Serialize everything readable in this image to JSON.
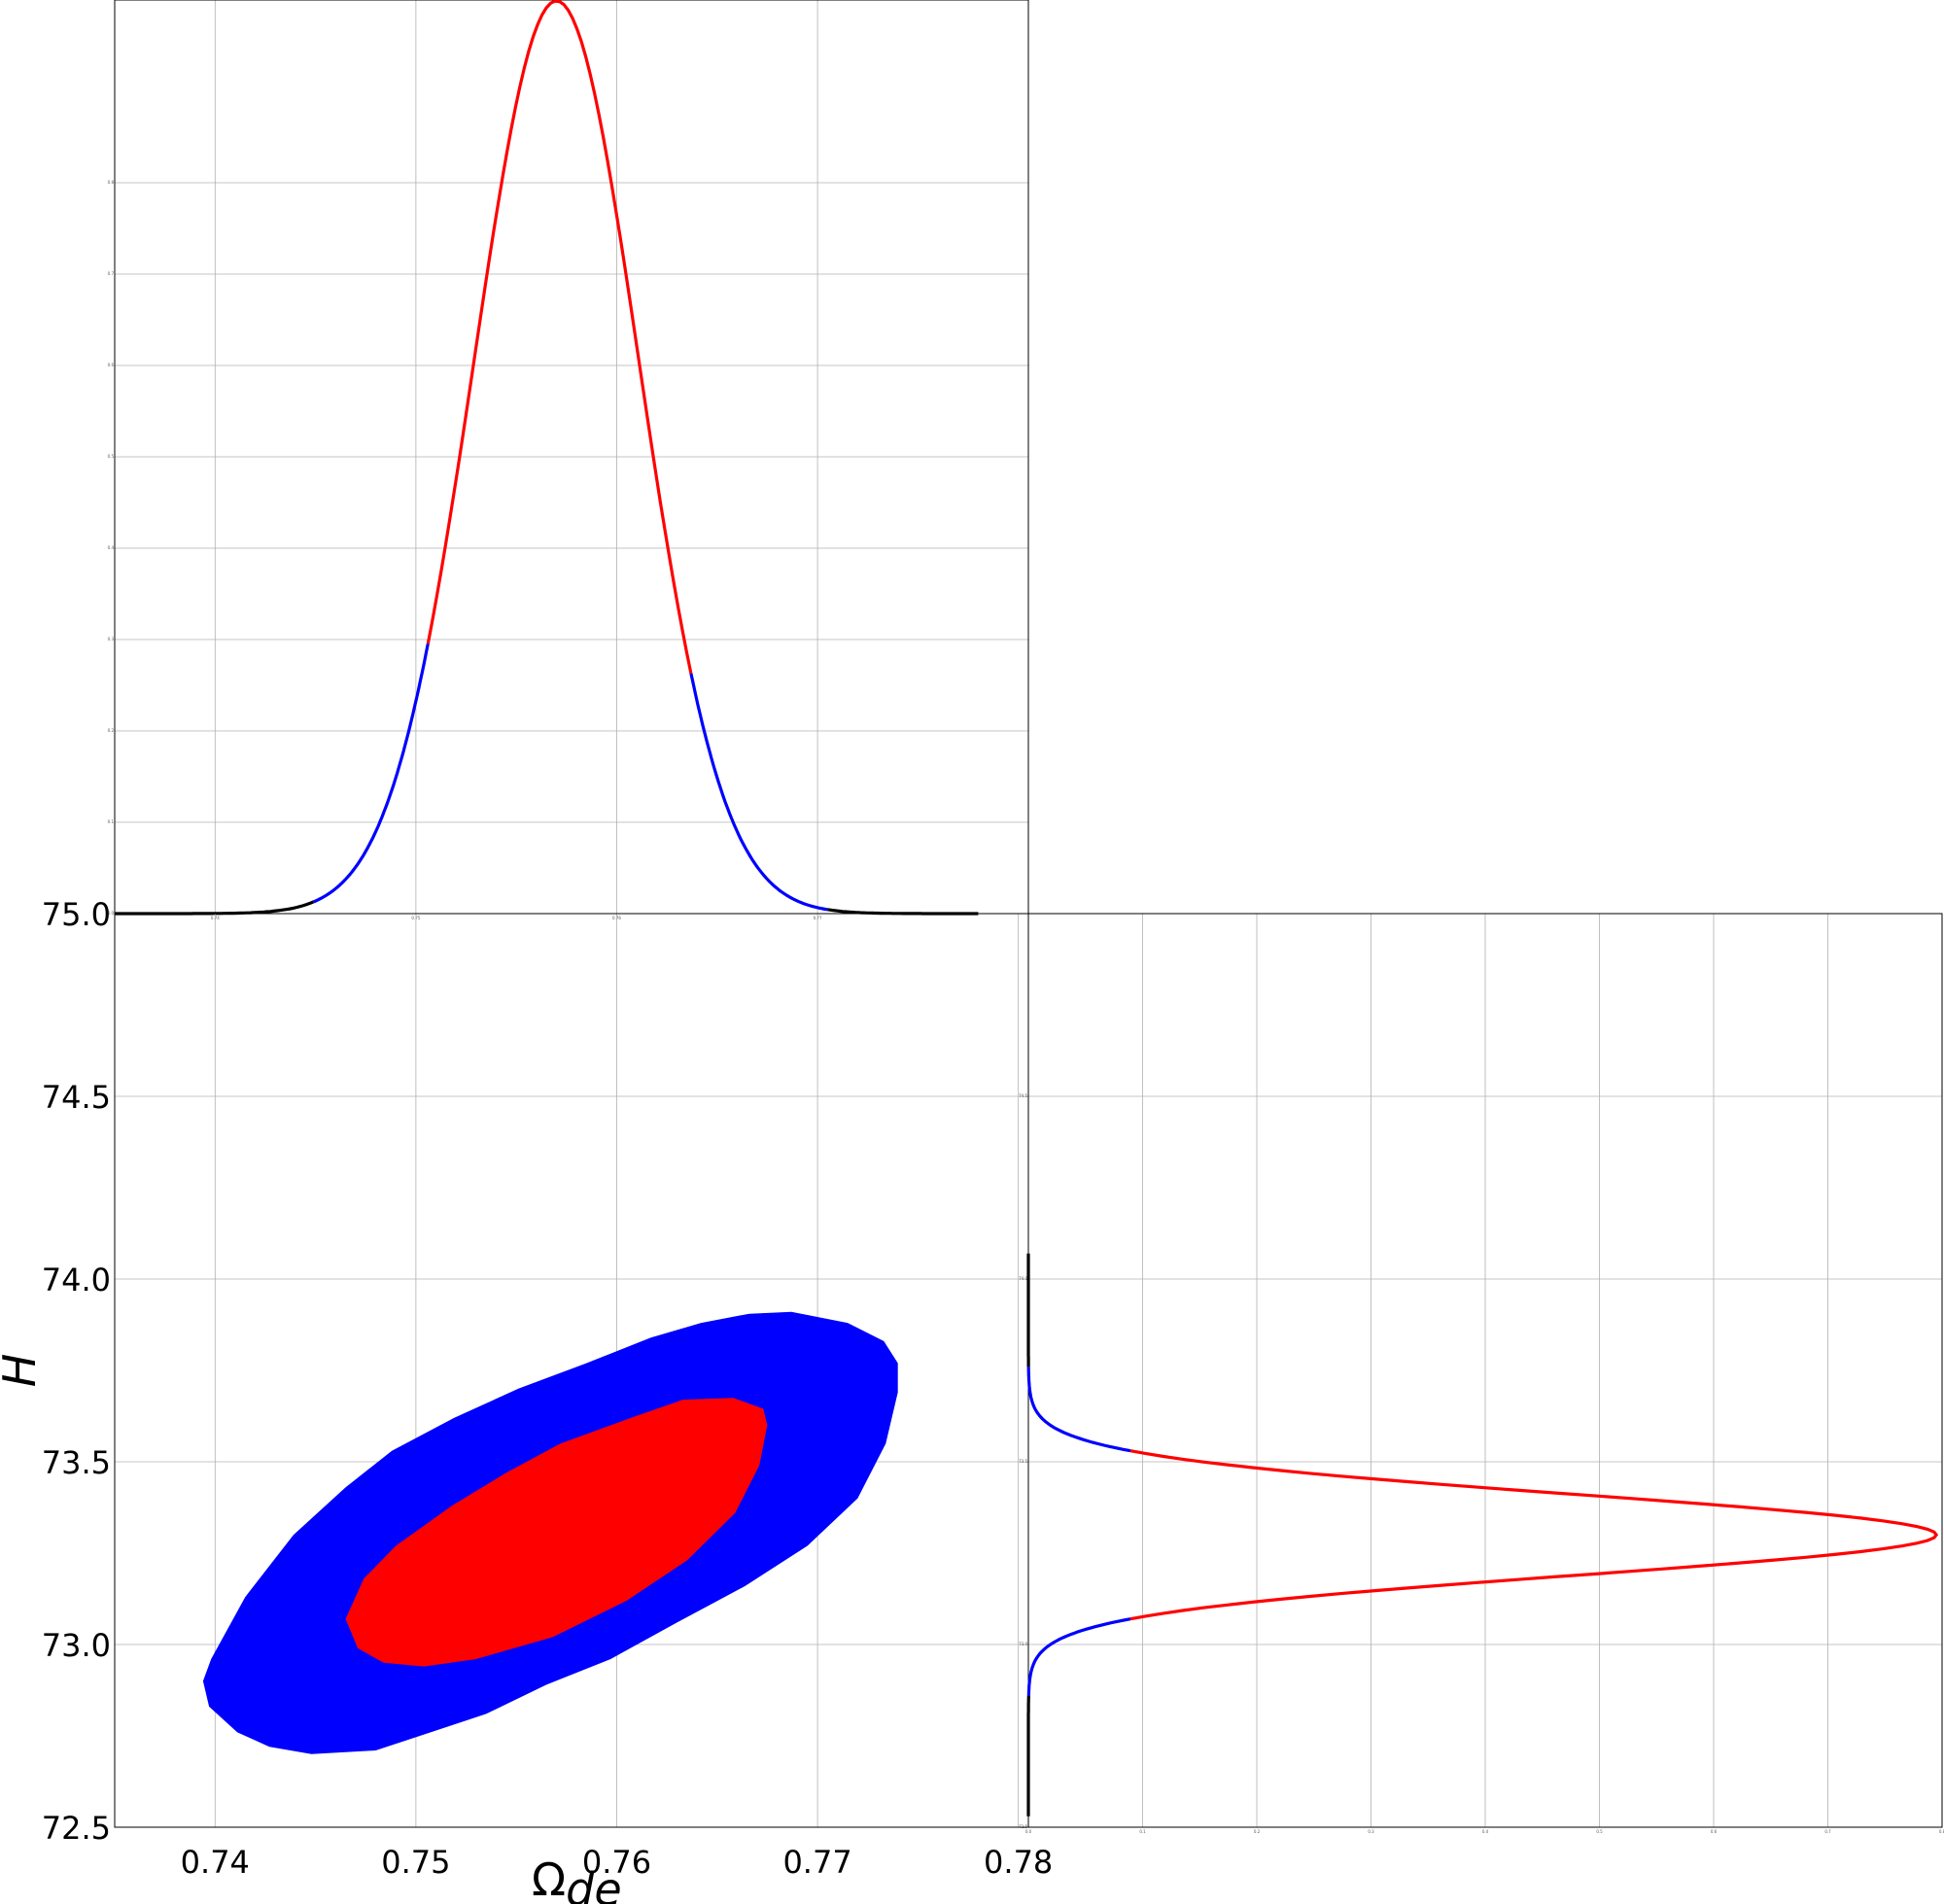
{
  "chart_data": [
    {
      "panel": "marginal-omega",
      "type": "line",
      "xlabel": "",
      "ylabel": "",
      "xlim": [
        0.735,
        0.7805
      ],
      "ylim": [
        0,
        1
      ],
      "x_ticks": [
        "0.74",
        "0.75",
        "0.76",
        "0.77"
      ],
      "y_ticks": [
        "0.0",
        "0.1",
        "0.2",
        "0.3",
        "0.4",
        "0.5",
        "0.6",
        "0.7",
        "0.8"
      ],
      "peak": 0.757,
      "sigma": 0.0041,
      "x_range": [
        0.735,
        0.778
      ],
      "colors": {
        "tail": "#000000",
        "sigma2": "#0000ff",
        "sigma1": "#ff0000"
      },
      "segments": [
        {
          "color": "tail",
          "from": 0.735,
          "to": 0.7449
        },
        {
          "color": "sigma2",
          "from": 0.7449,
          "to": 0.7506
        },
        {
          "color": "sigma1",
          "from": 0.7506,
          "to": 0.7637
        },
        {
          "color": "sigma2",
          "from": 0.7637,
          "to": 0.7705
        },
        {
          "color": "tail",
          "from": 0.7705,
          "to": 0.778
        }
      ]
    },
    {
      "panel": "joint-omega-H",
      "type": "contour",
      "xlabel": "Ω_de",
      "ylabel": "H",
      "xlim": [
        0.735,
        0.7805
      ],
      "ylim": [
        72.5,
        75.0
      ],
      "x_ticks": [
        "0.74",
        "0.75",
        "0.76",
        "0.77",
        "0.78"
      ],
      "y_ticks": [
        "72.5",
        "73.0",
        "73.5",
        "74.0",
        "74.5",
        "75.0"
      ],
      "colors": {
        "outer": "#0000ff",
        "inner": "#ff0000"
      },
      "contours": {
        "outer": [
          [
            0.7398,
            72.96
          ],
          [
            0.7415,
            73.13
          ],
          [
            0.7439,
            73.3
          ],
          [
            0.7465,
            73.43
          ],
          [
            0.7488,
            73.53
          ],
          [
            0.7519,
            73.62
          ],
          [
            0.7551,
            73.7
          ],
          [
            0.7585,
            73.77
          ],
          [
            0.7617,
            73.84
          ],
          [
            0.7642,
            73.88
          ],
          [
            0.7666,
            73.905
          ],
          [
            0.7687,
            73.91
          ],
          [
            0.7715,
            73.88
          ],
          [
            0.7733,
            73.83
          ],
          [
            0.774,
            73.77
          ],
          [
            0.774,
            73.69
          ],
          [
            0.7734,
            73.55
          ],
          [
            0.772,
            73.4
          ],
          [
            0.7695,
            73.27
          ],
          [
            0.7664,
            73.16
          ],
          [
            0.763,
            73.06
          ],
          [
            0.7597,
            72.96
          ],
          [
            0.7565,
            72.89
          ],
          [
            0.7535,
            72.81
          ],
          [
            0.7502,
            72.75
          ],
          [
            0.748,
            72.71
          ],
          [
            0.7448,
            72.7
          ],
          [
            0.7427,
            72.72
          ],
          [
            0.7411,
            72.76
          ],
          [
            0.7397,
            72.83
          ],
          [
            0.7394,
            72.9
          ]
        ],
        "inner": [
          [
            0.7465,
            73.07
          ],
          [
            0.7474,
            73.18
          ],
          [
            0.749,
            73.27
          ],
          [
            0.7518,
            73.38
          ],
          [
            0.7545,
            73.47
          ],
          [
            0.7572,
            73.55
          ],
          [
            0.7607,
            73.62
          ],
          [
            0.7633,
            73.67
          ],
          [
            0.7658,
            73.675
          ],
          [
            0.7673,
            73.645
          ],
          [
            0.7675,
            73.6
          ],
          [
            0.7671,
            73.49
          ],
          [
            0.7659,
            73.36
          ],
          [
            0.7635,
            73.23
          ],
          [
            0.7605,
            73.12
          ],
          [
            0.7568,
            73.02
          ],
          [
            0.753,
            72.96
          ],
          [
            0.7504,
            72.94
          ],
          [
            0.7484,
            72.95
          ],
          [
            0.7471,
            72.99
          ]
        ]
      }
    },
    {
      "panel": "marginal-H",
      "type": "line",
      "orientation": "horizontal",
      "xlabel": "",
      "ylabel": "",
      "xlim": [
        0,
        0.8
      ],
      "ylim": [
        72.5,
        75.0
      ],
      "x_ticks": [
        "0.0",
        "0.1",
        "0.2",
        "0.3",
        "0.4",
        "0.5",
        "0.6",
        "0.7",
        "0.8"
      ],
      "y_ticks": [
        "72.5",
        "73.0",
        "73.5",
        "74.0",
        "74.5"
      ],
      "peak": 73.3,
      "sigma": 0.11,
      "x_range": [
        72.53,
        74.07
      ],
      "colors": {
        "tail": "#000000",
        "sigma2": "#0000ff",
        "sigma1": "#ff0000"
      },
      "segments": [
        {
          "color": "tail",
          "from": 72.53,
          "to": 72.86
        },
        {
          "color": "sigma2",
          "from": 72.86,
          "to": 73.07
        },
        {
          "color": "sigma1",
          "from": 73.07,
          "to": 73.53
        },
        {
          "color": "sigma2",
          "from": 73.53,
          "to": 73.76
        },
        {
          "color": "tail",
          "from": 73.76,
          "to": 74.07
        }
      ]
    }
  ]
}
